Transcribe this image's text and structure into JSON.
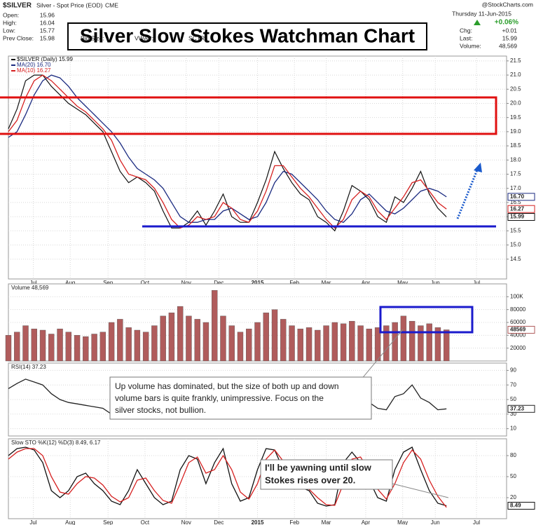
{
  "header": {
    "symbol": "$SILVER",
    "description": "Silver - Spot Price (EOD)",
    "exchange": "CME",
    "credit": "@StockCharts.com",
    "date": "Thursday 11-Jun-2015",
    "change_pct": "+0.06%",
    "fields": [
      {
        "label": "Open:",
        "value": "15.96"
      },
      {
        "label": "High:",
        "value": "16.04"
      },
      {
        "label": "Low:",
        "value": "15.77"
      },
      {
        "label": "Prev Close:",
        "value": "15.98"
      }
    ],
    "extra_fields": [
      "Bid Size:",
      "VWAP:",
      "SCTR:"
    ],
    "right_fields": [
      {
        "label": "Chg:",
        "value": "+0.01"
      },
      {
        "label": "Last:",
        "value": "15.99"
      },
      {
        "label": "Volume:",
        "value": "48,569"
      }
    ],
    "title": "Silver Slow Stokes Watchman Chart"
  },
  "chart_data": [
    {
      "type": "line",
      "xlim": [
        0,
        58
      ],
      "ylim": [
        13.8,
        21.67
      ],
      "x": [
        0,
        1,
        2,
        3,
        4,
        5,
        6,
        7,
        8,
        9,
        10,
        11,
        12,
        13,
        14,
        15,
        16,
        17,
        18,
        19,
        20,
        21,
        22,
        23,
        24,
        25,
        26,
        27,
        28,
        29,
        30,
        31,
        32,
        33,
        34,
        35,
        36,
        37,
        38,
        39,
        40,
        41,
        42,
        43,
        44,
        45,
        46,
        47,
        48,
        49,
        50,
        51
      ],
      "xticks": [
        {
          "value": 2.9,
          "label": "Jul"
        },
        {
          "value": 7.2,
          "label": "Aug"
        },
        {
          "value": 11.6,
          "label": "Sep"
        },
        {
          "value": 15.9,
          "label": "Oct"
        },
        {
          "value": 20.7,
          "label": "Nov"
        },
        {
          "value": 24.5,
          "label": "Dec"
        },
        {
          "value": 29,
          "label": "2015"
        },
        {
          "value": 33.3,
          "label": "Feb"
        },
        {
          "value": 37,
          "label": "Mar"
        },
        {
          "value": 41.6,
          "label": "Apr"
        },
        {
          "value": 45.9,
          "label": "May"
        },
        {
          "value": 49.7,
          "label": "Jun"
        },
        {
          "value": 54.5,
          "label": "Jul"
        }
      ],
      "yticks": [
        14.5,
        {
          "value": 15,
          "label": "15.0"
        },
        15.5,
        {
          "value": 16,
          "label": "16.0"
        },
        16.5,
        {
          "value": 17,
          "label": "17.0"
        },
        17.5,
        {
          "value": 18,
          "label": "18.0"
        },
        18.5,
        {
          "value": 19,
          "label": "19.0"
        },
        19.5,
        {
          "value": 20,
          "label": "20.0"
        },
        20.5,
        {
          "value": 21,
          "label": "21.0"
        },
        21.5
      ],
      "grid": true,
      "series": [
        {
          "name": "$SILVER (Daily) 15.99",
          "color": "#111111",
          "tag": "15.99",
          "values": [
            19.1,
            19.8,
            20.8,
            21.0,
            21.0,
            20.6,
            20.3,
            20.0,
            19.8,
            19.6,
            19.3,
            19.0,
            18.3,
            17.6,
            17.2,
            17.4,
            17.2,
            16.9,
            16.2,
            15.6,
            15.6,
            15.8,
            16.2,
            15.7,
            16.2,
            16.8,
            16.0,
            15.8,
            15.8,
            16.5,
            17.3,
            18.3,
            17.7,
            17.2,
            16.8,
            16.6,
            16.0,
            15.8,
            15.5,
            16.2,
            17.1,
            16.9,
            16.6,
            16.0,
            15.8,
            16.7,
            16.5,
            17.0,
            17.6,
            16.8,
            16.3,
            15.99
          ]
        },
        {
          "name": "MA(20) 16.70",
          "color": "#1a2a80",
          "tag": "16.70",
          "values": [
            18.8,
            19.0,
            19.6,
            20.3,
            20.8,
            21.0,
            20.9,
            20.6,
            20.2,
            19.9,
            19.6,
            19.3,
            19.0,
            18.6,
            18.1,
            17.7,
            17.5,
            17.3,
            17.0,
            16.5,
            16.0,
            15.8,
            15.8,
            15.9,
            15.9,
            16.2,
            16.3,
            16.1,
            15.9,
            16.0,
            16.5,
            17.2,
            17.6,
            17.5,
            17.2,
            16.9,
            16.6,
            16.2,
            15.9,
            15.8,
            16.1,
            16.6,
            16.8,
            16.5,
            16.2,
            16.1,
            16.3,
            16.6,
            16.9,
            17.0,
            16.9,
            16.7
          ]
        },
        {
          "name": "MA(10) 16.27",
          "color": "#d62020",
          "tag": "16.27",
          "values": [
            19.0,
            19.4,
            20.2,
            20.8,
            21.0,
            20.8,
            20.5,
            20.2,
            19.9,
            19.7,
            19.4,
            19.1,
            18.7,
            18.0,
            17.5,
            17.4,
            17.3,
            17.0,
            16.5,
            15.9,
            15.6,
            15.7,
            16.0,
            15.9,
            16.0,
            16.5,
            16.3,
            15.9,
            15.8,
            16.2,
            16.9,
            17.8,
            17.8,
            17.4,
            17.0,
            16.7,
            16.3,
            15.9,
            15.6,
            15.9,
            16.6,
            16.9,
            16.7,
            16.2,
            15.9,
            16.3,
            16.7,
            17.2,
            17.3,
            16.9,
            16.5,
            16.27
          ]
        }
      ]
    },
    {
      "type": "bar",
      "title": "Volume 48,569",
      "color": "#b05c5c",
      "tag": "48569",
      "xlim": [
        0,
        58
      ],
      "ylim": [
        0,
        120000
      ],
      "x": [
        0,
        1,
        2,
        3,
        4,
        5,
        6,
        7,
        8,
        9,
        10,
        11,
        12,
        13,
        14,
        15,
        16,
        17,
        18,
        19,
        20,
        21,
        22,
        23,
        24,
        25,
        26,
        27,
        28,
        29,
        30,
        31,
        32,
        33,
        34,
        35,
        36,
        37,
        38,
        39,
        40,
        41,
        42,
        43,
        44,
        45,
        46,
        47,
        48,
        49,
        50,
        51
      ],
      "yticks": [
        20000,
        40000,
        60000,
        80000,
        {
          "value": 100000,
          "label": "100K"
        }
      ],
      "grid": true,
      "values": [
        40000,
        45000,
        55000,
        50000,
        48000,
        42000,
        50000,
        45000,
        40000,
        38000,
        42000,
        45000,
        60000,
        65000,
        52000,
        48000,
        45000,
        55000,
        70000,
        75000,
        85000,
        70000,
        65000,
        60000,
        110000,
        70000,
        55000,
        45000,
        50000,
        60000,
        75000,
        80000,
        65000,
        55000,
        50000,
        52000,
        48000,
        55000,
        60000,
        58000,
        62000,
        55000,
        50000,
        52000,
        55000,
        60000,
        70000,
        62000,
        55000,
        58000,
        52000,
        48569
      ]
    },
    {
      "type": "line",
      "title": "RSI(14) 37.23",
      "xlim": [
        0,
        58
      ],
      "ylim": [
        0,
        100
      ],
      "x": [
        0,
        1,
        2,
        3,
        4,
        5,
        6,
        7,
        8,
        9,
        10,
        11,
        12,
        13,
        14,
        15,
        16,
        17,
        18,
        19,
        20,
        21,
        22,
        23,
        24,
        25,
        26,
        27,
        28,
        29,
        30,
        31,
        32,
        33,
        34,
        35,
        36,
        37,
        38,
        39,
        40,
        41,
        42,
        43,
        44,
        45,
        46,
        47,
        48,
        49,
        50,
        51
      ],
      "yticks": [
        10,
        30,
        50,
        70,
        90
      ],
      "grid": true,
      "annotation": [
        "Up volume has dominated, but the size of both up and down",
        "volume bars is quite frankly, unimpressive.  Focus on the",
        "silver stocks, not bullion."
      ],
      "series": [
        {
          "color": "#222222",
          "tag": "37.23",
          "values": [
            65,
            72,
            78,
            74,
            70,
            58,
            50,
            46,
            44,
            42,
            40,
            38,
            30,
            26,
            30,
            40,
            38,
            34,
            28,
            26,
            32,
            40,
            46,
            38,
            46,
            56,
            40,
            36,
            38,
            52,
            60,
            68,
            54,
            46,
            42,
            44,
            36,
            34,
            30,
            46,
            58,
            52,
            46,
            38,
            36,
            54,
            58,
            70,
            52,
            46,
            36,
            37.23
          ]
        }
      ]
    },
    {
      "type": "line",
      "title": "Slow STO %K(12) %D(3) 8.49, 6.17",
      "xlim": [
        0,
        58
      ],
      "ylim": [
        -10,
        104
      ],
      "x": [
        0,
        1,
        2,
        3,
        4,
        5,
        6,
        7,
        8,
        9,
        10,
        11,
        12,
        13,
        14,
        15,
        16,
        17,
        18,
        19,
        20,
        21,
        22,
        23,
        24,
        25,
        26,
        27,
        28,
        29,
        30,
        31,
        32,
        33,
        34,
        35,
        36,
        37,
        38,
        39,
        40,
        41,
        42,
        43,
        44,
        45,
        46,
        47,
        48,
        49,
        50,
        51
      ],
      "xticks": [
        {
          "value": 2.9,
          "label": "Jul"
        },
        {
          "value": 7.2,
          "label": "Aug"
        },
        {
          "value": 11.6,
          "label": "Sep"
        },
        {
          "value": 15.9,
          "label": "Oct"
        },
        {
          "value": 20.7,
          "label": "Nov"
        },
        {
          "value": 24.5,
          "label": "Dec"
        },
        {
          "value": 29,
          "label": "2015"
        },
        {
          "value": 33.3,
          "label": "Feb"
        },
        {
          "value": 37,
          "label": "Mar"
        },
        {
          "value": 41.6,
          "label": "Apr"
        },
        {
          "value": 45.9,
          "label": "May"
        },
        {
          "value": 49.7,
          "label": "Jun"
        },
        {
          "value": 54.5,
          "label": "Jul"
        }
      ],
      "yticks": [
        20,
        50,
        80
      ],
      "grid": true,
      "annotation": [
        "I'll be yawning until slow",
        "Stokes rises over 20."
      ],
      "series": [
        {
          "color": "#111111",
          "tag": "8.49",
          "values": [
            80,
            90,
            92,
            88,
            70,
            30,
            20,
            30,
            50,
            55,
            40,
            30,
            15,
            10,
            30,
            60,
            40,
            20,
            10,
            15,
            60,
            80,
            75,
            40,
            70,
            90,
            40,
            15,
            20,
            60,
            90,
            88,
            60,
            40,
            35,
            30,
            12,
            8,
            10,
            70,
            85,
            70,
            45,
            20,
            15,
            60,
            85,
            92,
            60,
            30,
            12,
            8.49
          ]
        },
        {
          "color": "#d62020",
          "values": [
            75,
            85,
            90,
            90,
            80,
            50,
            28,
            25,
            40,
            50,
            48,
            38,
            22,
            14,
            20,
            45,
            48,
            30,
            16,
            12,
            40,
            70,
            78,
            55,
            60,
            80,
            60,
            28,
            18,
            40,
            75,
            88,
            72,
            50,
            38,
            32,
            20,
            10,
            9,
            40,
            75,
            78,
            58,
            32,
            18,
            40,
            70,
            88,
            75,
            45,
            22,
            6.17
          ]
        }
      ]
    }
  ]
}
